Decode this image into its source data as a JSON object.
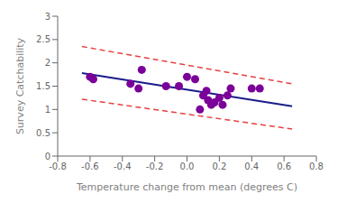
{
  "chart_data": {
    "type": "scatter",
    "xlabel": "Temperature change from mean (degrees C)",
    "ylabel": "Survey Catchability",
    "xlim": [
      -0.8,
      0.8
    ],
    "ylim": [
      0,
      3
    ],
    "xticks": [
      -0.8,
      -0.6,
      -0.4,
      -0.2,
      {
        "value": 0,
        "label": "0.0"
      },
      0.2,
      0.4,
      0.6,
      0.8
    ],
    "yticks": [
      0,
      0.5,
      1,
      1.5,
      2,
      2.5,
      3
    ],
    "grid": false,
    "series": [
      {
        "type": "scatter",
        "marker": "circle",
        "color": "#7B0099",
        "x": [
          -0.6,
          -0.58,
          -0.35,
          -0.3,
          -0.28,
          -0.13,
          -0.05,
          0.0,
          0.05,
          0.08,
          0.1,
          0.12,
          0.13,
          0.15,
          0.17,
          0.2,
          0.22,
          0.25,
          0.27,
          0.4,
          0.45
        ],
        "values": [
          1.7,
          1.65,
          1.55,
          1.45,
          1.85,
          1.5,
          1.5,
          1.7,
          1.65,
          1.0,
          1.3,
          1.4,
          1.2,
          1.1,
          1.15,
          1.25,
          1.1,
          1.3,
          1.45,
          1.45,
          1.45
        ]
      },
      {
        "type": "line",
        "line_style": "solid",
        "color": "#1C1C8C",
        "x": [
          -0.65,
          0.65
        ],
        "values": [
          1.78,
          1.07
        ]
      },
      {
        "type": "line",
        "line_style": "dashed",
        "color": "#E84040",
        "x": [
          -0.65,
          0.65
        ],
        "values": [
          2.35,
          1.55
        ]
      },
      {
        "type": "line",
        "line_style": "dashed",
        "color": "#E84040",
        "x": [
          -0.65,
          0.65
        ],
        "values": [
          1.22,
          0.58
        ]
      }
    ]
  }
}
